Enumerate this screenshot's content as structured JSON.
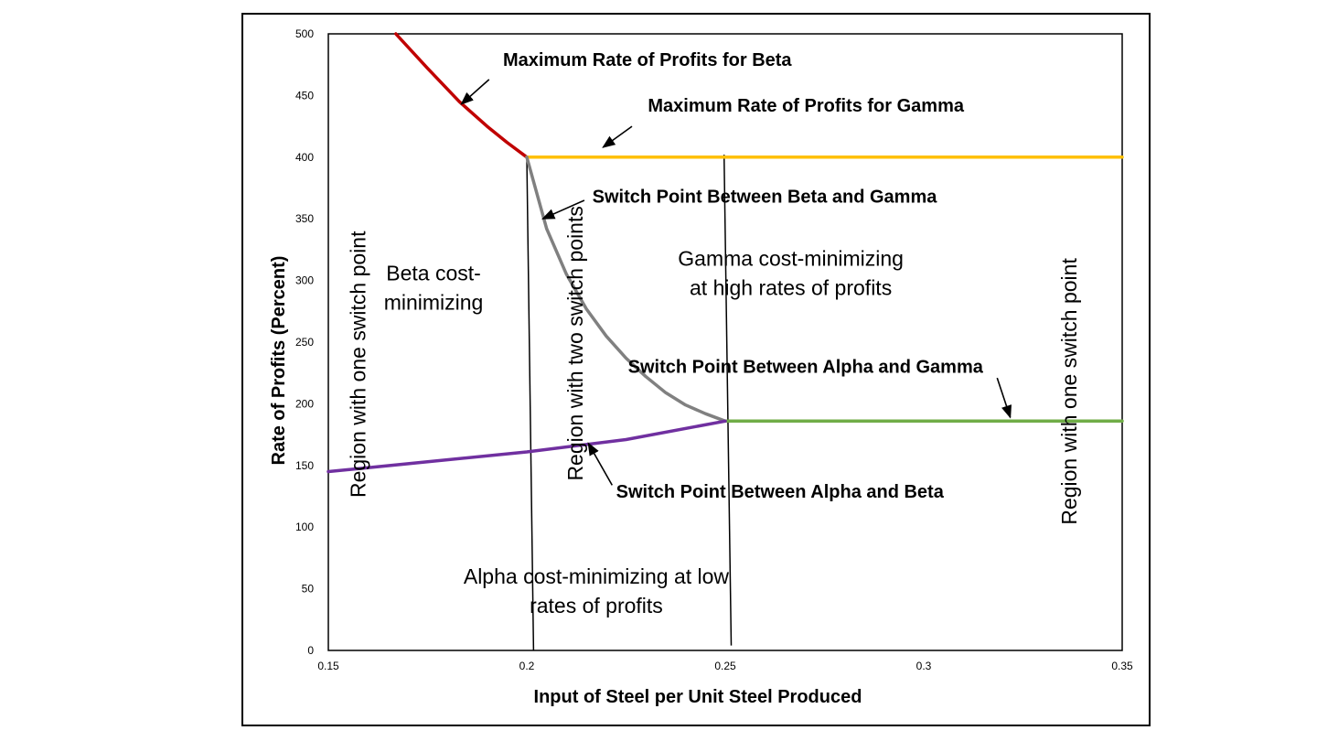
{
  "chart_data": {
    "type": "line",
    "xlabel": "Input of Steel per Unit Steel Produced",
    "ylabel": "Rate of Profits (Percent)",
    "xlim": [
      0.15,
      0.35
    ],
    "ylim": [
      0,
      500
    ],
    "x_ticks": [
      "0.15",
      "0.2",
      "0.25",
      "0.3",
      "0.35"
    ],
    "y_ticks": [
      "0",
      "50",
      "100",
      "150",
      "200",
      "250",
      "300",
      "350",
      "400",
      "450",
      "500"
    ],
    "grid": false,
    "legend": "none",
    "series": [
      {
        "key": "beta_max",
        "color": "#c00000",
        "x": [
          0.167,
          0.175,
          0.183,
          0.19,
          0.195,
          0.2
        ],
        "y": [
          500,
          472,
          445,
          425,
          412,
          400
        ]
      },
      {
        "key": "gamma_max",
        "color": "#ffc000",
        "x": [
          0.2,
          0.35
        ],
        "y": [
          400,
          400
        ]
      },
      {
        "key": "beta_gamma_switch",
        "color": "#808080",
        "x": [
          0.2,
          0.205,
          0.21,
          0.215,
          0.22,
          0.225,
          0.23,
          0.235,
          0.24,
          0.245,
          0.25
        ],
        "y": [
          400,
          342,
          305,
          277,
          255,
          237,
          222,
          209,
          199,
          192,
          186
        ]
      },
      {
        "key": "alpha_gamma_switch",
        "color": "#70ad47",
        "x": [
          0.25,
          0.35
        ],
        "y": [
          186,
          186
        ]
      },
      {
        "key": "alpha_beta_switch",
        "color": "#7030a0",
        "x": [
          0.15,
          0.175,
          0.2,
          0.225,
          0.25
        ],
        "y": [
          145,
          153,
          161,
          171,
          186
        ]
      }
    ],
    "boundaries": [
      {
        "x_top": 0.2,
        "y_top": 400,
        "x_bottom": 0.2017,
        "y_bottom": 0
      },
      {
        "x_top": 0.2497,
        "y_top": 402,
        "x_bottom": 0.2515,
        "y_bottom": 4
      }
    ],
    "annotations": [
      {
        "key": "beta_max_label",
        "text": "Maximum Rate of Profits for Beta",
        "bold": true,
        "x": 0.194,
        "y": 474,
        "arrow_from": [
          0.1905,
          463
        ],
        "arrow_to": [
          0.1835,
          443
        ]
      },
      {
        "key": "gamma_max_label",
        "text": "Maximum Rate of Profits for Gamma",
        "bold": true,
        "x": 0.2305,
        "y": 437,
        "arrow_from": [
          0.2265,
          425
        ],
        "arrow_to": [
          0.2192,
          408
        ]
      },
      {
        "key": "beta_gamma_label",
        "text": "Switch Point Between Beta and Gamma",
        "bold": true,
        "x": 0.2165,
        "y": 363,
        "arrow_from": [
          0.2145,
          365
        ],
        "arrow_to": [
          0.204,
          350
        ]
      },
      {
        "key": "alpha_gamma_label",
        "text": "Switch Point Between Alpha and Gamma",
        "bold": true,
        "x": 0.2255,
        "y": 225,
        "arrow_from": [
          0.3185,
          221
        ],
        "arrow_to": [
          0.3218,
          189
        ]
      },
      {
        "key": "alpha_beta_label",
        "text": "Switch Point Between Alpha and Beta",
        "bold": true,
        "x": 0.2225,
        "y": 124,
        "arrow_from": [
          0.2215,
          134
        ],
        "arrow_to": [
          0.2155,
          168
        ]
      },
      {
        "key": "beta_region",
        "text_lines": [
          "Beta cost-",
          "minimizing"
        ],
        "bold": false,
        "x": 0.1765,
        "y": 300
      },
      {
        "key": "gamma_region",
        "text_lines": [
          "Gamma cost-minimizing",
          "at high rates of profits"
        ],
        "bold": false,
        "x": 0.2665,
        "y": 312
      },
      {
        "key": "alpha_region",
        "text_lines": [
          "Alpha cost-minimizing at low",
          "rates of profits"
        ],
        "bold": false,
        "x": 0.2175,
        "y": 54
      },
      {
        "key": "left_region",
        "text": "Region with one switch point",
        "bold": false,
        "vertical": true,
        "x": 0.1575,
        "y": 232
      },
      {
        "key": "middle_region",
        "text": "Region with two switch points",
        "bold": false,
        "vertical": true,
        "x": 0.2122,
        "y": 249
      },
      {
        "key": "right_region",
        "text": "Region with one switch point",
        "bold": false,
        "vertical": true,
        "x": 0.3366,
        "y": 210
      }
    ]
  }
}
